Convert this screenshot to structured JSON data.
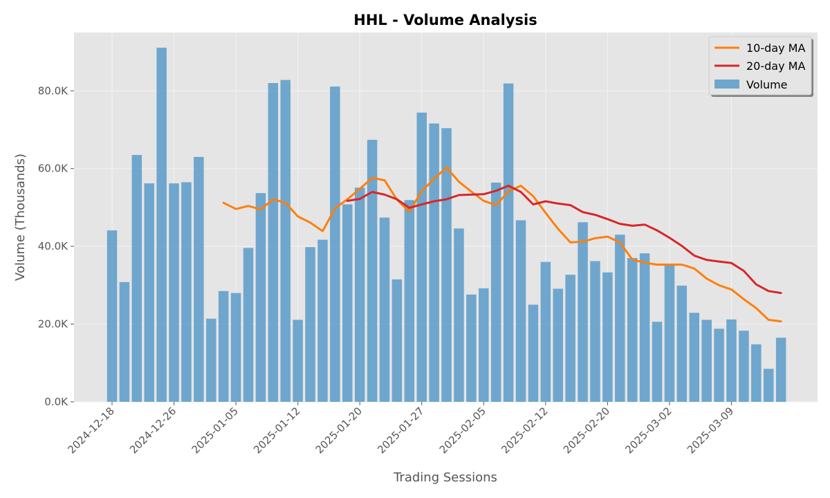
{
  "chart_data": {
    "type": "bar",
    "title": "HHL - Volume Analysis",
    "xlabel": "Trading Sessions",
    "ylabel": "Volume (Thousands)",
    "ylim": [
      0,
      95
    ],
    "y_unit": "thousands",
    "yticks": [
      0,
      20,
      40,
      60,
      80
    ],
    "ytick_labels": [
      "0.0K",
      "20.0K",
      "40.0K",
      "60.0K",
      "80.0K"
    ],
    "xtick_labels": [
      "2024-12-18",
      "2024-12-26",
      "2025-01-05",
      "2025-01-12",
      "2025-01-20",
      "2025-01-27",
      "2025-02-05",
      "2025-02-12",
      "2025-02-20",
      "2025-03-02",
      "2025-03-09"
    ],
    "xtick_indices": [
      0,
      5,
      10,
      15,
      20,
      25,
      30,
      35,
      40,
      45,
      50
    ],
    "grid": true,
    "legend_position": "top-right",
    "colors": {
      "volume": "#5b9bc9",
      "ma10": "#ff7f0e",
      "ma20": "#d62728",
      "plot_bg": "#e5e5e5",
      "grid": "#f3f3f3"
    },
    "series": [
      {
        "name": "Volume",
        "type": "bar",
        "values": [
          44.1,
          30.8,
          63.5,
          56.2,
          91.1,
          56.2,
          56.5,
          63.0,
          21.4,
          28.5,
          28.0,
          39.6,
          53.7,
          82.0,
          82.8,
          21.1,
          39.8,
          41.7,
          81.1,
          50.8,
          55.1,
          67.4,
          47.4,
          31.5,
          51.9,
          74.4,
          71.6,
          70.4,
          44.6,
          27.6,
          29.2,
          56.4,
          81.9,
          46.7,
          25.0,
          36.0,
          29.1,
          32.7,
          46.2,
          36.2,
          33.3,
          43.0,
          37.0,
          38.2,
          20.6,
          35.3,
          29.9,
          22.9,
          21.1,
          18.8,
          21.2,
          18.3,
          14.8,
          8.5,
          16.5
        ]
      },
      {
        "name": "10-day MA",
        "type": "line",
        "start_index": 9,
        "values": [
          51.2,
          49.6,
          50.4,
          49.5,
          52.1,
          51.2,
          47.7,
          46.1,
          43.9,
          49.8,
          52.1,
          54.8,
          57.6,
          57.0,
          52.0,
          48.9,
          54.2,
          57.4,
          60.3,
          56.6,
          54.1,
          51.7,
          50.6,
          54.1,
          55.6,
          52.9,
          48.6,
          44.5,
          41.0,
          41.2,
          42.1,
          42.5,
          41.0,
          36.6,
          35.8,
          35.3,
          35.3,
          35.3,
          34.3,
          31.7,
          30.0,
          28.9,
          26.4,
          24.1,
          21.1,
          20.7
        ]
      },
      {
        "name": "20-day MA",
        "type": "line",
        "start_index": 19,
        "values": [
          51.7,
          52.2,
          54.0,
          53.3,
          52.1,
          49.9,
          50.8,
          51.6,
          52.1,
          53.2,
          53.3,
          53.4,
          54.3,
          55.6,
          54.0,
          50.8,
          51.6,
          51.0,
          50.6,
          48.8,
          48.1,
          47.0,
          45.8,
          45.3,
          45.6,
          44.1,
          42.2,
          40.1,
          37.6,
          36.5,
          36.1,
          35.7,
          33.7,
          30.2,
          28.5,
          28.0
        ]
      }
    ],
    "legend_order": [
      "10-day MA",
      "20-day MA",
      "Volume"
    ]
  }
}
